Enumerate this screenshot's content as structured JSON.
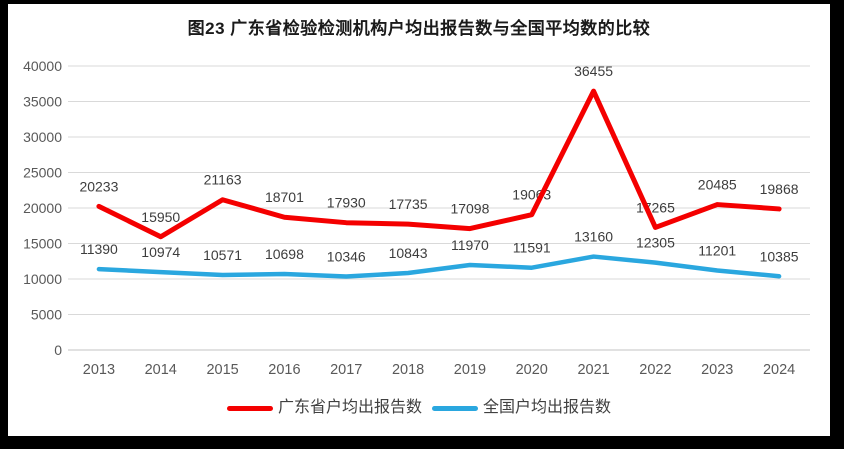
{
  "page": {
    "background": "#000000",
    "surface": "#ffffff"
  },
  "chart_data": {
    "type": "line",
    "title": "图23  广东省检验检测机构户均出报告数与全国平均数的比较",
    "categories": [
      "2013",
      "2014",
      "2015",
      "2016",
      "2017",
      "2018",
      "2019",
      "2020",
      "2021",
      "2022",
      "2023",
      "2024"
    ],
    "series": [
      {
        "name": "广东省户均出报告数",
        "color": "#f40000",
        "values": [
          20233,
          15950,
          21163,
          18701,
          17930,
          17735,
          17098,
          19063,
          36455,
          17265,
          20485,
          19868
        ]
      },
      {
        "name": "全国户均出报告数",
        "color": "#2aa7df",
        "values": [
          11390,
          10974,
          10571,
          10698,
          10346,
          10843,
          11970,
          11591,
          13160,
          12305,
          11201,
          10385
        ]
      }
    ],
    "xlabel": "",
    "ylabel": "",
    "ylim": [
      0,
      40000
    ],
    "y_ticks": [
      0,
      5000,
      10000,
      15000,
      20000,
      25000,
      30000,
      35000,
      40000
    ],
    "grid": true,
    "data_labels": true,
    "legend_position": "bottom",
    "gridline_color": "#d9d9d9",
    "tick_label_color": "#595959",
    "data_label_color": "#3d3d3d"
  }
}
